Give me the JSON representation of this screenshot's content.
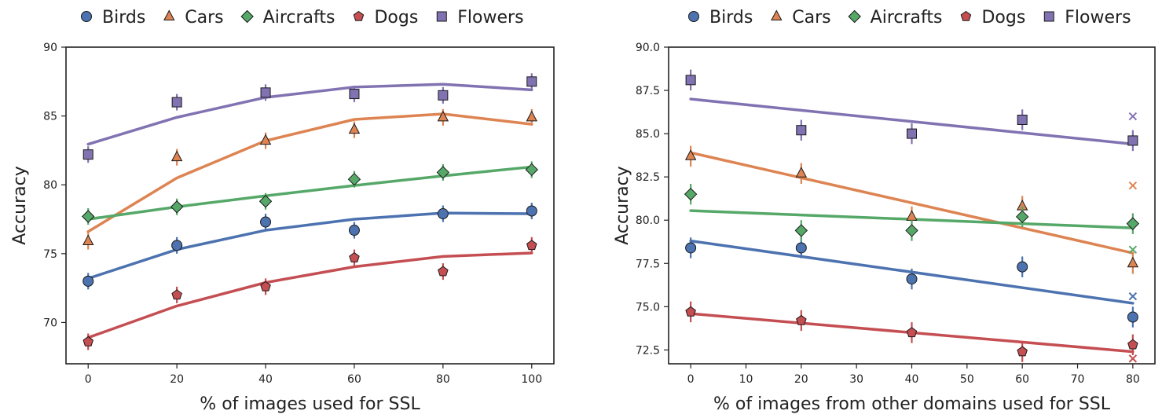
{
  "chart_data": [
    {
      "type": "scatter",
      "xlabel": "% of images used for SSL",
      "ylabel": "Accuracy",
      "xlim": [
        -5,
        105
      ],
      "ylim": [
        67,
        90
      ],
      "xticks": [
        0,
        20,
        40,
        60,
        80,
        100
      ],
      "yticks": [
        70,
        75,
        80,
        85,
        90
      ],
      "grid": false,
      "legend": "top",
      "series": [
        {
          "name": "Birds",
          "marker": "circle",
          "color": "#4c72b0",
          "points": [
            [
              0,
              73.0
            ],
            [
              20,
              75.6
            ],
            [
              40,
              77.3
            ],
            [
              60,
              76.7
            ],
            [
              80,
              77.9
            ],
            [
              100,
              78.1
            ]
          ],
          "errors": [
            0.6,
            0.6,
            0.6,
            0.6,
            0.6,
            0.6
          ],
          "fit": [
            [
              0,
              73.2
            ],
            [
              20,
              75.3
            ],
            [
              40,
              76.7
            ],
            [
              60,
              77.5
            ],
            [
              80,
              77.95
            ],
            [
              100,
              77.9
            ]
          ]
        },
        {
          "name": "Cars",
          "marker": "triangle",
          "color": "#dd8452",
          "points": [
            [
              0,
              75.9
            ],
            [
              20,
              82.0
            ],
            [
              40,
              83.2
            ],
            [
              60,
              84.0
            ],
            [
              80,
              84.9
            ],
            [
              100,
              84.9
            ]
          ],
          "errors": [
            0.6,
            0.6,
            0.6,
            0.6,
            0.6,
            0.6
          ],
          "fit": [
            [
              0,
              76.6
            ],
            [
              20,
              80.5
            ],
            [
              40,
              83.2
            ],
            [
              60,
              84.75
            ],
            [
              80,
              85.15
            ],
            [
              100,
              84.4
            ]
          ]
        },
        {
          "name": "Aircrafts",
          "marker": "diamond",
          "color": "#55a868",
          "points": [
            [
              0,
              77.7
            ],
            [
              20,
              78.4
            ],
            [
              40,
              78.8
            ],
            [
              60,
              80.4
            ],
            [
              80,
              80.9
            ],
            [
              100,
              81.1
            ]
          ],
          "errors": [
            0.6,
            0.6,
            0.6,
            0.6,
            0.6,
            0.6
          ],
          "fit": [
            [
              0,
              77.5
            ],
            [
              20,
              78.4
            ],
            [
              40,
              79.2
            ],
            [
              60,
              79.95
            ],
            [
              80,
              80.65
            ],
            [
              100,
              81.3
            ]
          ]
        },
        {
          "name": "Dogs",
          "marker": "pentagon",
          "color": "#c44e52",
          "points": [
            [
              0,
              68.6
            ],
            [
              20,
              72.0
            ],
            [
              40,
              72.6
            ],
            [
              60,
              74.7
            ],
            [
              80,
              73.7
            ],
            [
              100,
              75.6
            ]
          ],
          "errors": [
            0.6,
            0.6,
            0.6,
            0.6,
            0.6,
            0.6
          ],
          "fit": [
            [
              0,
              68.9
            ],
            [
              20,
              71.2
            ],
            [
              40,
              72.9
            ],
            [
              60,
              74.05
            ],
            [
              80,
              74.8
            ],
            [
              100,
              75.05
            ]
          ]
        },
        {
          "name": "Flowers",
          "marker": "square",
          "color": "#8172b2",
          "points": [
            [
              0,
              82.2
            ],
            [
              20,
              86.0
            ],
            [
              40,
              86.7
            ],
            [
              60,
              86.6
            ],
            [
              80,
              86.5
            ],
            [
              100,
              87.5
            ]
          ],
          "errors": [
            0.6,
            0.6,
            0.6,
            0.6,
            0.6,
            0.6
          ],
          "fit": [
            [
              0,
              82.95
            ],
            [
              20,
              84.9
            ],
            [
              40,
              86.35
            ],
            [
              60,
              87.1
            ],
            [
              80,
              87.3
            ],
            [
              100,
              86.9
            ]
          ]
        }
      ]
    },
    {
      "type": "scatter",
      "xlabel": "% of images from other domains used for SSL",
      "ylabel": "Accuracy",
      "xlim": [
        -4,
        84
      ],
      "ylim": [
        71.7,
        90.0
      ],
      "xticks": [
        0,
        10,
        20,
        30,
        40,
        50,
        60,
        70,
        80
      ],
      "yticks": [
        72.5,
        75.0,
        77.5,
        80.0,
        82.5,
        85.0,
        87.5,
        90.0
      ],
      "yticklabels": [
        "72.5",
        "75.0",
        "77.5",
        "80.0",
        "82.5",
        "85.0",
        "87.5",
        "90.0"
      ],
      "grid": false,
      "legend": "top",
      "series": [
        {
          "name": "Birds",
          "marker": "circle",
          "color": "#4c72b0",
          "points": [
            [
              0,
              78.4
            ],
            [
              20,
              78.4
            ],
            [
              40,
              76.6
            ],
            [
              60,
              77.3
            ],
            [
              80,
              74.4
            ]
          ],
          "errors": [
            0.6,
            0.6,
            0.6,
            0.6,
            0.6
          ],
          "fit": [
            [
              0,
              78.8
            ],
            [
              80,
              75.2
            ]
          ],
          "cross": [
            80,
            75.6
          ]
        },
        {
          "name": "Cars",
          "marker": "triangle",
          "color": "#dd8452",
          "points": [
            [
              0,
              83.7
            ],
            [
              20,
              82.7
            ],
            [
              40,
              80.2
            ],
            [
              60,
              80.8
            ],
            [
              80,
              77.5
            ]
          ],
          "errors": [
            0.6,
            0.6,
            0.6,
            0.6,
            0.6
          ],
          "fit": [
            [
              0,
              83.9
            ],
            [
              80,
              78.1
            ]
          ],
          "cross": [
            80,
            82.0
          ]
        },
        {
          "name": "Aircrafts",
          "marker": "diamond",
          "color": "#55a868",
          "points": [
            [
              0,
              81.5
            ],
            [
              20,
              79.4
            ],
            [
              40,
              79.4
            ],
            [
              60,
              80.2
            ],
            [
              80,
              79.8
            ]
          ],
          "errors": [
            0.6,
            0.6,
            0.6,
            0.6,
            0.6
          ],
          "fit": [
            [
              0,
              80.55
            ],
            [
              80,
              79.55
            ]
          ],
          "cross": [
            80,
            78.3
          ]
        },
        {
          "name": "Dogs",
          "marker": "pentagon",
          "color": "#c44e52",
          "points": [
            [
              0,
              74.7
            ],
            [
              20,
              74.2
            ],
            [
              40,
              73.5
            ],
            [
              60,
              72.4
            ],
            [
              80,
              72.8
            ]
          ],
          "errors": [
            0.6,
            0.6,
            0.6,
            0.6,
            0.6
          ],
          "fit": [
            [
              0,
              74.6
            ],
            [
              80,
              72.4
            ]
          ],
          "cross": [
            80,
            72.0
          ]
        },
        {
          "name": "Flowers",
          "marker": "square",
          "color": "#8172b2",
          "points": [
            [
              0,
              88.1
            ],
            [
              20,
              85.2
            ],
            [
              40,
              85.0
            ],
            [
              60,
              85.8
            ],
            [
              80,
              84.6
            ]
          ],
          "errors": [
            0.6,
            0.6,
            0.6,
            0.6,
            0.6
          ],
          "fit": [
            [
              0,
              87.0
            ],
            [
              80,
              84.4
            ]
          ],
          "cross": [
            80,
            86.0
          ]
        }
      ]
    }
  ]
}
